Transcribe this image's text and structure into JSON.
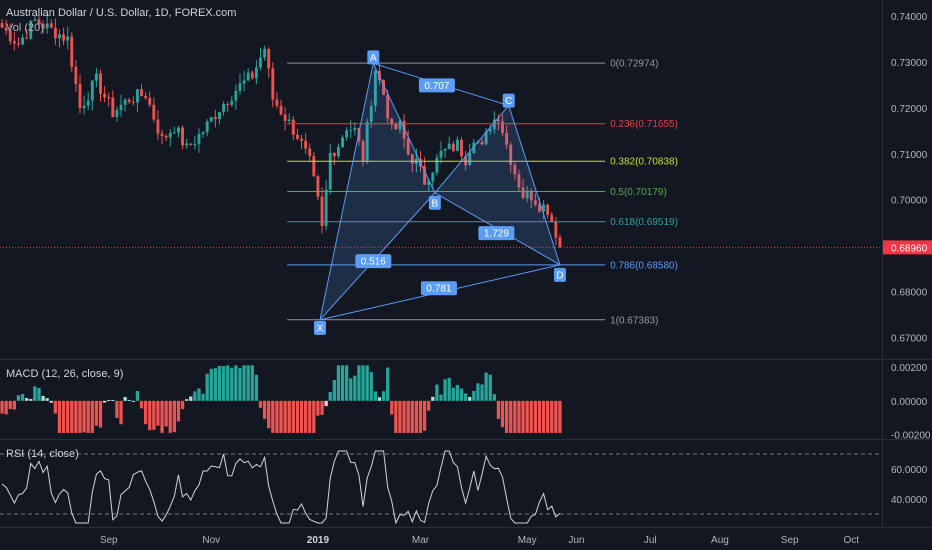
{
  "header": {
    "symbol": "Australian Dollar / U.S. Dollar, 1D, FOREX.com",
    "vol_label": "Vol (20)",
    "macd_label": "MACD (12, 26, close, 9)",
    "rsi_label": "RSI (14, close)"
  },
  "colors": {
    "background": "#131722",
    "up": "#26a69a",
    "down": "#ef5350",
    "pattern": "#5b9cf6",
    "last_price": "#f23645"
  },
  "chart_data": {
    "type": "candlestick",
    "price_axis": {
      "min": 0.6695,
      "max": 0.7425,
      "ticks": [
        0.674,
        0.68,
        0.685,
        0.69,
        0.695,
        0.7,
        0.705,
        0.71,
        0.715,
        0.72,
        0.725,
        0.73,
        0.735,
        0.74
      ],
      "tick_labels": [
        "0.67000",
        "0.68000",
        "0.69000",
        "0.70000",
        "0.71000",
        "0.72000",
        "0.73000",
        "0.74000"
      ],
      "tick_values": [
        0.67,
        0.68,
        0.69,
        0.7,
        0.71,
        0.72,
        0.73,
        0.74
      ]
    },
    "time_axis": {
      "labels": [
        "Sep",
        "Nov",
        "2019",
        "Mar",
        "May",
        "Jun",
        "Jul",
        "Aug",
        "Sep",
        "Oct"
      ],
      "bar_index": [
        26,
        51,
        77,
        102,
        128,
        140,
        158,
        175,
        192,
        207
      ]
    },
    "last_price": {
      "value": 0.6896,
      "label": "0.68960"
    },
    "price_path": [
      [
        0,
        0.7375
      ],
      [
        4,
        0.734
      ],
      [
        8,
        0.739
      ],
      [
        12,
        0.737
      ],
      [
        16,
        0.735
      ],
      [
        19,
        0.72
      ],
      [
        23,
        0.726
      ],
      [
        27,
        0.719
      ],
      [
        31,
        0.722
      ],
      [
        35,
        0.723
      ],
      [
        39,
        0.713
      ],
      [
        42,
        0.716
      ],
      [
        45,
        0.711
      ],
      [
        49,
        0.715
      ],
      [
        53,
        0.72
      ],
      [
        57,
        0.724
      ],
      [
        61,
        0.727
      ],
      [
        64,
        0.733
      ],
      [
        66,
        0.722
      ],
      [
        69,
        0.718
      ],
      [
        72,
        0.714
      ],
      [
        75,
        0.708
      ],
      [
        77,
        0.6995
      ],
      [
        78,
        0.6935
      ],
      [
        80,
        0.71
      ],
      [
        82,
        0.712
      ],
      [
        84,
        0.716
      ],
      [
        86,
        0.715
      ],
      [
        88,
        0.709
      ],
      [
        91,
        0.7285
      ],
      [
        93,
        0.723
      ],
      [
        95,
        0.715
      ],
      [
        97,
        0.716
      ],
      [
        99,
        0.71
      ],
      [
        101,
        0.708
      ],
      [
        103,
        0.704
      ],
      [
        105,
        0.707
      ],
      [
        107,
        0.71
      ],
      [
        109,
        0.711
      ],
      [
        111,
        0.712
      ],
      [
        113,
        0.709
      ],
      [
        115,
        0.714
      ],
      [
        117,
        0.711
      ],
      [
        119,
        0.7165
      ],
      [
        121,
        0.7185
      ],
      [
        123,
        0.712
      ],
      [
        125,
        0.706
      ],
      [
        127,
        0.701
      ],
      [
        129,
        0.701
      ],
      [
        131,
        0.699
      ],
      [
        133,
        0.698
      ],
      [
        135,
        0.693
      ],
      [
        136,
        0.6896
      ]
    ],
    "harmonic_pattern": {
      "points": [
        {
          "label": "X",
          "bar": 77.5,
          "price": 0.6738
        },
        {
          "label": "A",
          "bar": 90.5,
          "price": 0.7297
        },
        {
          "label": "B",
          "bar": 105.5,
          "price": 0.7015
        },
        {
          "label": "C",
          "bar": 123.5,
          "price": 0.7205
        },
        {
          "label": "D",
          "bar": 136.0,
          "price": 0.6858
        }
      ],
      "ratios": [
        {
          "label": "0.707",
          "bar": 106.0,
          "price": 0.7249
        },
        {
          "label": "0.516",
          "bar": 90.5,
          "price": 0.6866
        },
        {
          "label": "1.729",
          "bar": 120.5,
          "price": 0.6927
        },
        {
          "label": "0.781",
          "bar": 106.5,
          "price": 0.6807
        }
      ]
    },
    "fib_levels": [
      {
        "ratio": "0",
        "value": "0.72974",
        "price": 0.72974,
        "color": "#9598a1"
      },
      {
        "ratio": "0.236",
        "value": "0.71655",
        "price": 0.71655,
        "color": "#f23645"
      },
      {
        "ratio": "0.382",
        "value": "0.70838",
        "price": 0.70838,
        "color": "#c5e02a"
      },
      {
        "ratio": "0.5",
        "value": "0.70179",
        "price": 0.70179,
        "color": "#4caf50"
      },
      {
        "ratio": "0.618",
        "value": "0.69519",
        "price": 0.69519,
        "color": "#26a69a"
      },
      {
        "ratio": "0.786",
        "value": "0.68580",
        "price": 0.6858,
        "color": "#5b9cf6"
      },
      {
        "ratio": "1",
        "value": "0.67383",
        "price": 0.67383,
        "color": "#9598a1"
      }
    ],
    "macd": {
      "ticks": [
        0.002,
        0.0,
        -0.002
      ],
      "tick_labels": [
        "0.00200",
        "0.00000",
        "-0.00200"
      ],
      "min": -0.0022,
      "max": 0.0023
    },
    "rsi": {
      "ticks": [
        60,
        40
      ],
      "tick_labels": [
        "60.0000",
        "40.0000"
      ],
      "upper_band": 70,
      "lower_band": 30,
      "min": 22,
      "max": 78
    }
  }
}
